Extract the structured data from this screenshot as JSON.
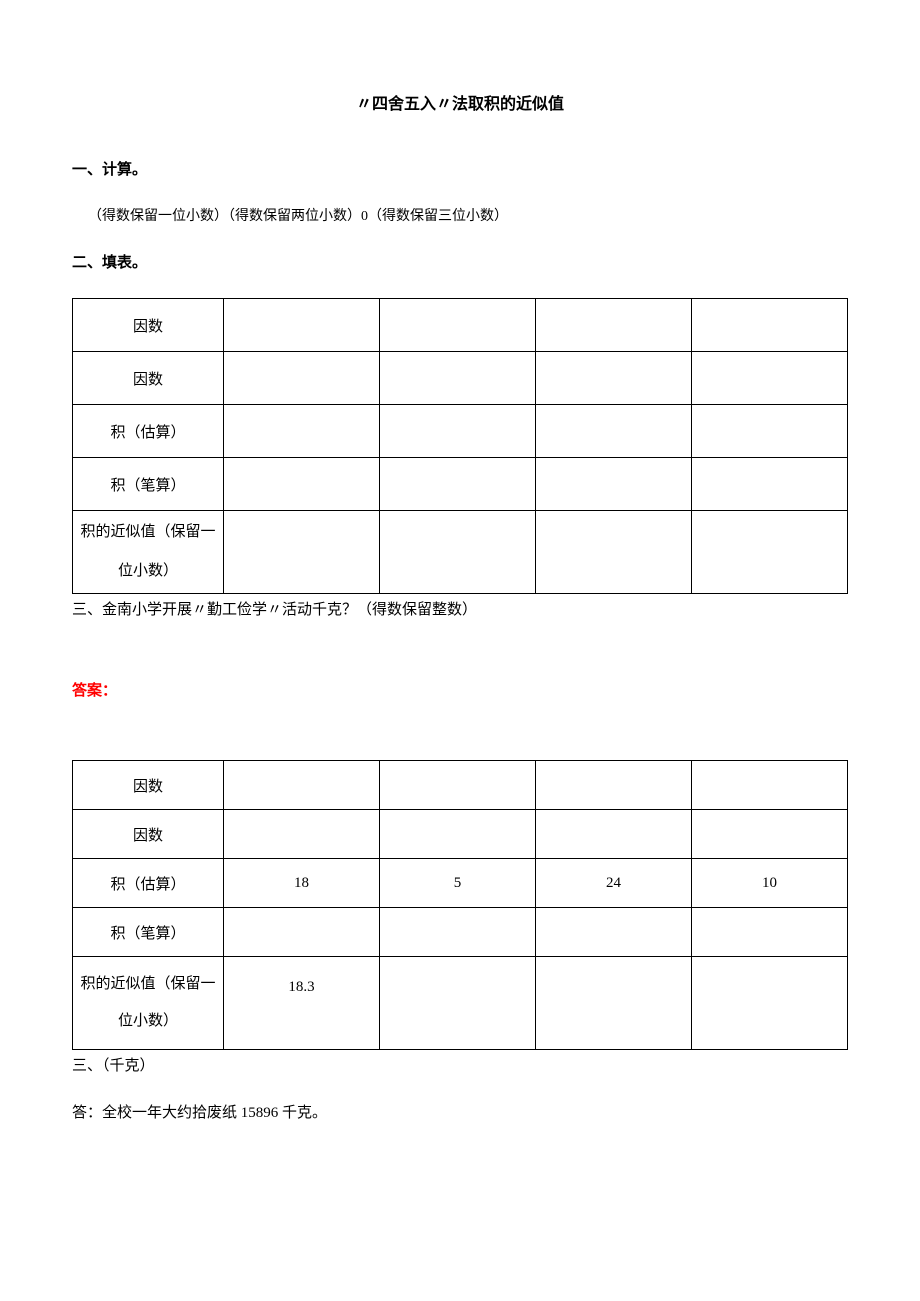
{
  "title": "〃四舍五入〃法取积的近似值",
  "section1": {
    "heading": "一、计算。",
    "line": "（得数保留一位小数）（得数保留两位小数）0（得数保留三位小数）"
  },
  "section2": {
    "heading": "二、填表。",
    "table": {
      "col_count": 5,
      "rows": [
        {
          "label": "因数",
          "cells": [
            "",
            "",
            "",
            ""
          ]
        },
        {
          "label": "因数",
          "cells": [
            "",
            "",
            "",
            ""
          ]
        },
        {
          "label": "积（估算）",
          "cells": [
            "",
            "",
            "",
            ""
          ]
        },
        {
          "label": "积（笔算）",
          "cells": [
            "",
            "",
            "",
            ""
          ]
        },
        {
          "label": "积的近似值（保留一位小数）",
          "cells": [
            "",
            "",
            "",
            ""
          ],
          "last": true
        }
      ]
    }
  },
  "section3": {
    "line": "三、金南小学开展〃勤工俭学〃活动千克？（得数保留整数）"
  },
  "answer_label": "答案：",
  "answer_table": {
    "col_count": 5,
    "rows": [
      {
        "label": "因数",
        "cells": [
          "",
          "",
          "",
          ""
        ]
      },
      {
        "label": "因数",
        "cells": [
          "",
          "",
          "",
          ""
        ]
      },
      {
        "label": "积（估算）",
        "cells": [
          "18",
          "5",
          "24",
          "10"
        ]
      },
      {
        "label": "积（笔算）",
        "cells": [
          "",
          "",
          "",
          ""
        ]
      },
      {
        "label": "积的近似值（保留一位小数）",
        "cells": [
          "18.3",
          "",
          "",
          ""
        ],
        "last": true,
        "top_align": true
      }
    ]
  },
  "after_answer_line": "三、（千克）",
  "final_answer": "答：全校一年大约拾废纸 15896 千克。"
}
